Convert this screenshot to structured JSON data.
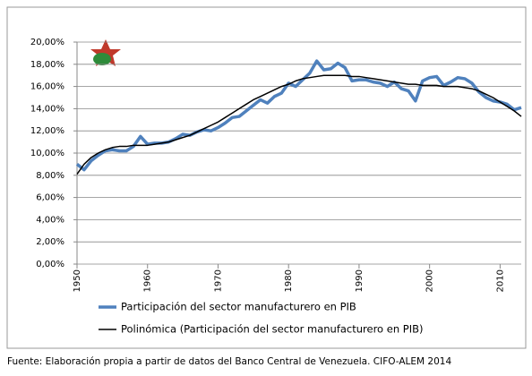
{
  "chart_data": {
    "type": "line",
    "x": [
      1950,
      1951,
      1952,
      1953,
      1954,
      1955,
      1956,
      1957,
      1958,
      1959,
      1960,
      1961,
      1962,
      1963,
      1964,
      1965,
      1966,
      1967,
      1968,
      1969,
      1970,
      1971,
      1972,
      1973,
      1974,
      1975,
      1976,
      1977,
      1978,
      1979,
      1980,
      1981,
      1982,
      1983,
      1984,
      1985,
      1986,
      1987,
      1988,
      1989,
      1990,
      1991,
      1992,
      1993,
      1994,
      1995,
      1996,
      1997,
      1998,
      1999,
      2000,
      2001,
      2002,
      2003,
      2004,
      2005,
      2006,
      2007,
      2008,
      2009,
      2010,
      2011,
      2012,
      2013
    ],
    "series": [
      {
        "name": "Participación del sector manufacturero en PIB",
        "color": "#4f81bd",
        "width": 3.5,
        "values": [
          9.0,
          8.5,
          9.3,
          9.8,
          10.2,
          10.3,
          10.2,
          10.2,
          10.6,
          11.5,
          10.8,
          10.9,
          10.9,
          11.0,
          11.3,
          11.7,
          11.6,
          11.9,
          12.1,
          12.0,
          12.3,
          12.7,
          13.2,
          13.3,
          13.8,
          14.3,
          14.8,
          14.5,
          15.1,
          15.4,
          16.3,
          16.0,
          16.6,
          17.2,
          18.3,
          17.5,
          17.6,
          18.1,
          17.7,
          16.5,
          16.6,
          16.6,
          16.4,
          16.3,
          16.0,
          16.4,
          15.8,
          15.6,
          14.7,
          16.5,
          16.8,
          16.9,
          16.1,
          16.4,
          16.8,
          16.7,
          16.3,
          15.5,
          15.0,
          14.7,
          14.6,
          14.4,
          13.9,
          14.1
        ]
      },
      {
        "name": "Polinómica (Participación del sector manufacturero en PIB)",
        "color": "#000000",
        "width": 1.5,
        "values": [
          8.1,
          9.0,
          9.6,
          10.0,
          10.3,
          10.5,
          10.6,
          10.6,
          10.7,
          10.7,
          10.7,
          10.8,
          10.9,
          11.0,
          11.2,
          11.4,
          11.6,
          11.9,
          12.2,
          12.5,
          12.8,
          13.2,
          13.6,
          14.0,
          14.4,
          14.8,
          15.1,
          15.4,
          15.7,
          16.0,
          16.2,
          16.5,
          16.7,
          16.8,
          16.9,
          17.0,
          17.0,
          17.0,
          17.0,
          16.9,
          16.9,
          16.8,
          16.7,
          16.6,
          16.5,
          16.4,
          16.3,
          16.2,
          16.2,
          16.1,
          16.1,
          16.1,
          16.0,
          16.0,
          16.0,
          15.9,
          15.8,
          15.6,
          15.3,
          15.0,
          14.6,
          14.2,
          13.8,
          13.3
        ]
      }
    ],
    "xlim": [
      1950,
      2013
    ],
    "xticks": [
      1950,
      1960,
      1970,
      1980,
      1990,
      2000,
      2010
    ],
    "ylim": [
      0,
      20
    ],
    "yticks": [
      {
        "value": 0,
        "label": "0,00%"
      },
      {
        "value": 2,
        "label": "2,00%"
      },
      {
        "value": 4,
        "label": "4,00%"
      },
      {
        "value": 6,
        "label": "6,00%"
      },
      {
        "value": 8,
        "label": "8,00%"
      },
      {
        "value": 10,
        "label": "10,00%"
      },
      {
        "value": 12,
        "label": "12,00%"
      },
      {
        "value": 14,
        "label": "14,00%"
      },
      {
        "value": 16,
        "label": "16,00%"
      },
      {
        "value": 18,
        "label": "18,00%"
      },
      {
        "value": 20,
        "label": "20,00%"
      }
    ],
    "grid": true,
    "source": "Fuente: Elaboración propia a partir de datos del Banco Central de Venezuela. CIFO-ALEM 2014"
  }
}
